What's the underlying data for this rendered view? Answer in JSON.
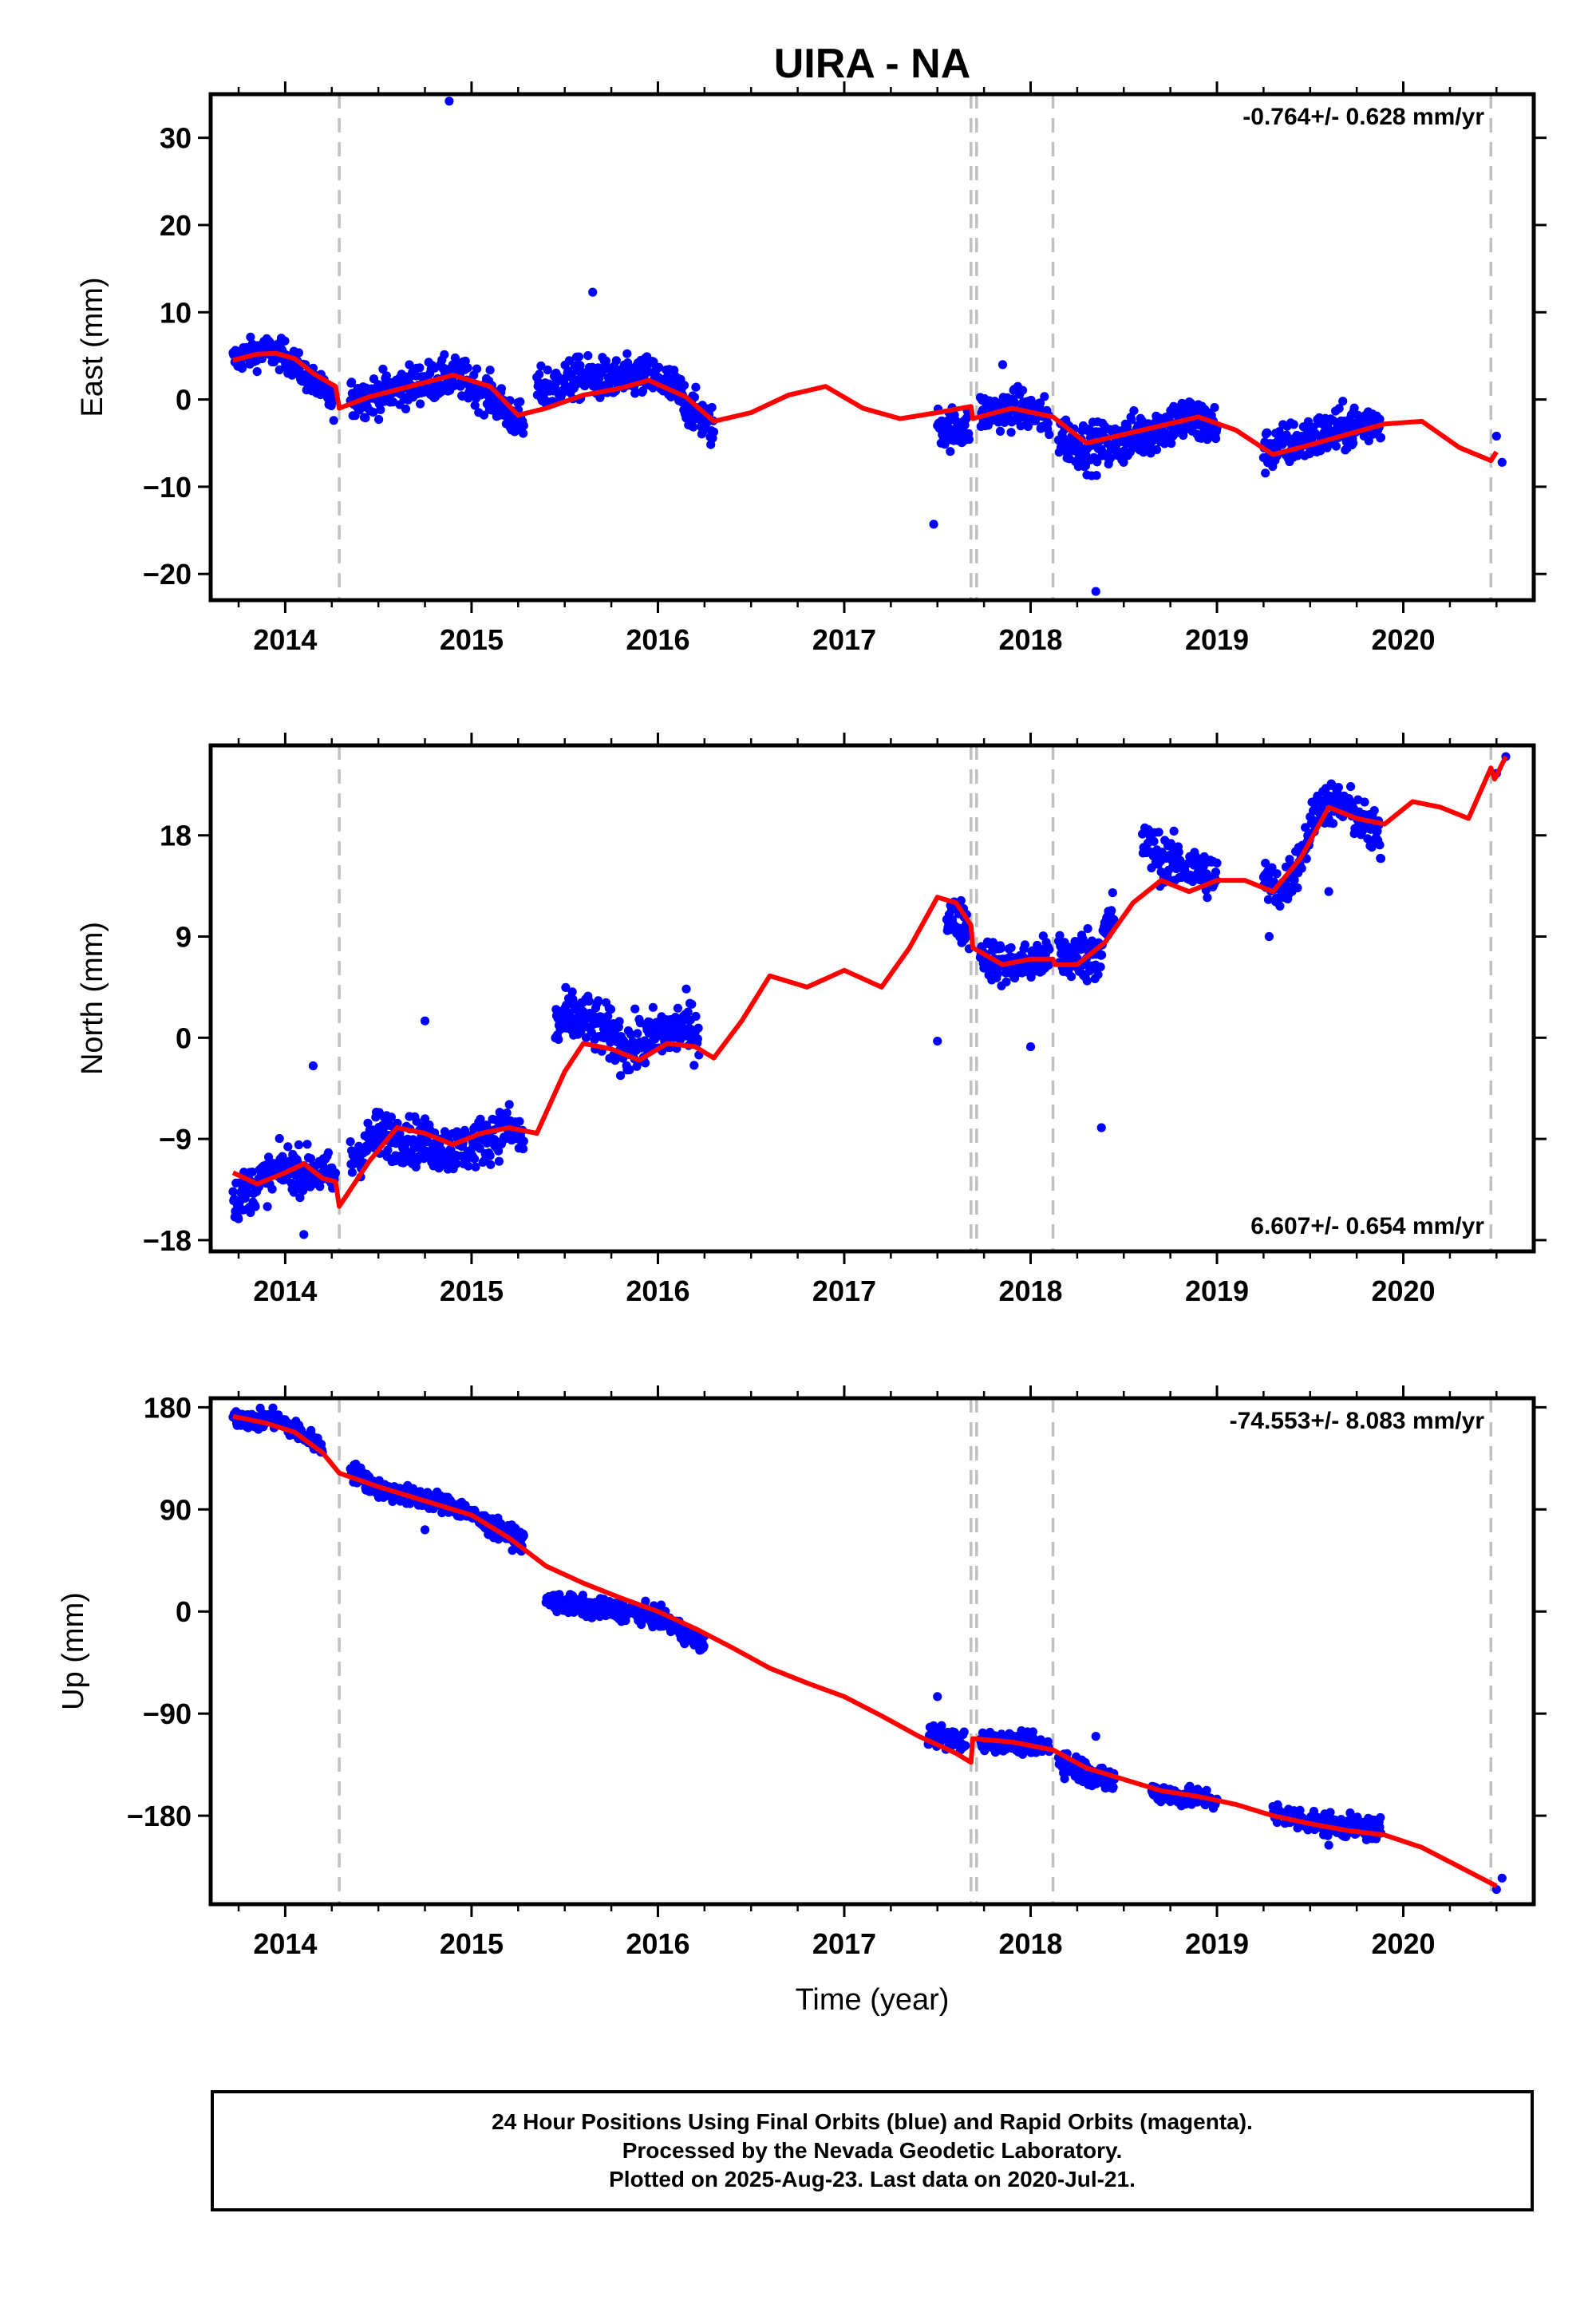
{
  "figure": {
    "title": "UIRA - NA",
    "xlabel": "Time (year)"
  },
  "colors": {
    "data": "#0000ff",
    "model": "#ff0000",
    "event": "#c0c0c0",
    "axes": "#000000"
  },
  "caption": {
    "line1": "24 Hour Positions Using Final Orbits (blue) and Rapid Orbits (magenta).",
    "line2": "Processed by the Nevada Geodetic Laboratory.",
    "line3": "Plotted on 2025-Aug-23. Last data on 2020-Jul-21."
  },
  "chart_data": [
    {
      "type": "scatter",
      "ylabel": "East (mm)",
      "rate_label": "-0.764+/- 0.628 mm/yr",
      "rate_position": "top-right",
      "xlim": [
        2013.6,
        2020.7
      ],
      "ylim": [
        -23,
        35
      ],
      "xticks": [
        2014,
        2015,
        2016,
        2017,
        2018,
        2019,
        2020
      ],
      "xtick_labels": [
        "2014",
        "2015",
        "2016",
        "2017",
        "2018",
        "2019",
        "2020"
      ],
      "yticks": [
        -20,
        -10,
        0,
        10,
        20,
        30
      ],
      "ytick_labels": [
        "−20",
        "−10",
        "0",
        "10",
        "20",
        "30"
      ],
      "event_lines": [
        2014.29,
        2017.68,
        2017.71,
        2018.12,
        2020.47
      ],
      "data_segments": [
        {
          "x": [
            2013.72,
            2013.8,
            2013.9,
            2014.0,
            2014.1,
            2014.2,
            2014.27
          ],
          "y": [
            4.5,
            5.2,
            5.6,
            5.0,
            3.0,
            1.0,
            -0.5
          ],
          "spread": 1.2
        },
        {
          "x": [
            2014.35,
            2014.5,
            2014.7,
            2014.9,
            2015.0,
            2015.1,
            2015.2,
            2015.28
          ],
          "y": [
            0.0,
            0.6,
            1.8,
            2.6,
            1.8,
            0.5,
            -1.5,
            -3.0
          ],
          "spread": 1.6
        },
        {
          "x": [
            2015.35,
            2015.5,
            2015.6,
            2015.8,
            2015.9,
            2016.0,
            2016.1,
            2016.2,
            2016.3
          ],
          "y": [
            1.0,
            2.0,
            2.5,
            2.2,
            2.6,
            2.5,
            1.0,
            -1.5,
            -3.2
          ],
          "spread": 1.7
        },
        {
          "x": [
            2017.5,
            2017.6,
            2017.67
          ],
          "y": [
            -3.0,
            -3.3,
            -3.0
          ],
          "spread": 1.7
        },
        {
          "x": [
            2017.73,
            2017.85,
            2017.95,
            2018.05,
            2018.1
          ],
          "y": [
            -1.5,
            -1.3,
            -1.0,
            -1.8,
            -2.5
          ],
          "spread": 1.6
        },
        {
          "x": [
            2018.15,
            2018.3,
            2018.45,
            2018.6,
            2018.75,
            2018.85,
            2019.0
          ],
          "y": [
            -4.0,
            -5.5,
            -5.2,
            -3.8,
            -2.8,
            -2.2,
            -3.2
          ],
          "spread": 1.9
        },
        {
          "x": [
            2019.25,
            2019.4,
            2019.55,
            2019.7,
            2019.85,
            2019.88
          ],
          "y": [
            -6.0,
            -5.0,
            -4.2,
            -3.3,
            -2.4,
            -2.2
          ],
          "spread": 1.8
        },
        {
          "x": [
            2020.5,
            2020.53
          ],
          "y": [
            -4.2,
            -7.2
          ],
          "spread": 0
        }
      ],
      "outliers": [
        {
          "x": 2014.88,
          "y": 34.2
        },
        {
          "x": 2015.65,
          "y": 12.3
        },
        {
          "x": 2017.48,
          "y": -14.3
        },
        {
          "x": 2018.35,
          "y": -22.0
        },
        {
          "x": 2017.85,
          "y": 4.0
        }
      ],
      "model_line": {
        "x": [
          2013.72,
          2013.85,
          2013.95,
          2014.05,
          2014.15,
          2014.27,
          2014.29,
          2014.45,
          2014.65,
          2014.9,
          2015.1,
          2015.25,
          2015.4,
          2015.6,
          2015.8,
          2015.95,
          2016.15,
          2016.3,
          2016.5,
          2016.7,
          2016.9,
          2017.1,
          2017.3,
          2017.5,
          2017.68,
          2017.69,
          2017.9,
          2018.12,
          2018.3,
          2018.5,
          2018.7,
          2018.9,
          2019.1,
          2019.3,
          2019.5,
          2019.7,
          2019.9,
          2020.1,
          2020.3,
          2020.47,
          2020.5
        ],
        "y": [
          4.5,
          5.2,
          5.3,
          4.7,
          3.0,
          1.5,
          -1.0,
          0.3,
          1.4,
          2.8,
          1.5,
          -1.8,
          -1.0,
          0.5,
          1.3,
          2.2,
          0.3,
          -2.5,
          -1.5,
          0.5,
          1.5,
          -1.0,
          -2.2,
          -1.5,
          -0.8,
          -2.2,
          -1.0,
          -2.0,
          -5.0,
          -4.0,
          -3.0,
          -2.0,
          -3.5,
          -6.3,
          -5.2,
          -4.0,
          -2.8,
          -2.5,
          -5.5,
          -7.0,
          -6.0
        ]
      }
    },
    {
      "type": "scatter",
      "ylabel": "North (mm)",
      "rate_label": "6.607+/- 0.654 mm/yr",
      "rate_position": "bottom-right",
      "xlim": [
        2013.6,
        2020.7
      ],
      "ylim": [
        -19,
        26
      ],
      "xticks": [
        2014,
        2015,
        2016,
        2017,
        2018,
        2019,
        2020
      ],
      "xtick_labels": [
        "2014",
        "2015",
        "2016",
        "2017",
        "2018",
        "2019",
        "2020"
      ],
      "yticks": [
        -18,
        -9,
        0,
        9,
        18
      ],
      "ytick_labels": [
        "−18",
        "−9",
        "0",
        "9",
        "18"
      ],
      "event_lines": [
        2014.29,
        2017.68,
        2017.71,
        2018.12,
        2020.47
      ],
      "data_segments": [
        {
          "x": [
            2013.72,
            2013.85,
            2014.0,
            2014.1,
            2014.2,
            2014.27
          ],
          "y": [
            -14.5,
            -13.0,
            -11.5,
            -11.8,
            -12.0,
            -12.5
          ],
          "spread": 1.4
        },
        {
          "x": [
            2014.35,
            2014.5,
            2014.7,
            2014.9,
            2015.0,
            2015.1,
            2015.2,
            2015.28
          ],
          "y": [
            -11.0,
            -8.5,
            -9.2,
            -10.0,
            -9.6,
            -8.8,
            -8.0,
            -9.2
          ],
          "spread": 1.5
        },
        {
          "x": [
            2015.45,
            2015.55,
            2015.7,
            2015.85,
            2016.0,
            2016.15,
            2016.22
          ],
          "y": [
            1.0,
            2.0,
            0.8,
            -1.0,
            0.3,
            1.0,
            0.6
          ],
          "spread": 1.7
        },
        {
          "x": [
            2017.55,
            2017.6,
            2017.67
          ],
          "y": [
            10.5,
            10.5,
            9.8
          ],
          "spread": 1.4
        },
        {
          "x": [
            2017.73,
            2017.85,
            2017.95,
            2018.05,
            2018.1
          ],
          "y": [
            7.5,
            6.5,
            6.5,
            7.0,
            7.2
          ],
          "spread": 1.3
        },
        {
          "x": [
            2018.15,
            2018.25,
            2018.35,
            2018.45
          ],
          "y": [
            7.5,
            7.2,
            7.5,
            11.0
          ],
          "spread": 1.7
        },
        {
          "x": [
            2018.6,
            2018.7,
            2018.85,
            2019.0
          ],
          "y": [
            17.5,
            16.0,
            15.0,
            14.5
          ],
          "spread": 1.5
        },
        {
          "x": [
            2019.25,
            2019.35,
            2019.45,
            2019.55,
            2019.7,
            2019.85,
            2019.88
          ],
          "y": [
            14.0,
            13.0,
            16.0,
            21.0,
            20.5,
            18.0,
            17.5
          ],
          "spread": 1.4
        },
        {
          "x": [
            2020.5,
            2020.55
          ],
          "y": [
            23.5,
            25.0
          ],
          "spread": 0
        }
      ],
      "outliers": [
        {
          "x": 2014.15,
          "y": -2.5
        },
        {
          "x": 2014.1,
          "y": -17.5
        },
        {
          "x": 2014.75,
          "y": 1.5
        },
        {
          "x": 2017.5,
          "y": -0.3
        },
        {
          "x": 2018.0,
          "y": -0.8
        },
        {
          "x": 2018.38,
          "y": -8.0
        },
        {
          "x": 2019.28,
          "y": 9.0
        },
        {
          "x": 2019.6,
          "y": 13.0
        }
      ],
      "model_line": {
        "x": [
          2013.72,
          2013.85,
          2014.0,
          2014.1,
          2014.2,
          2014.27,
          2014.29,
          2014.45,
          2014.6,
          2014.75,
          2014.9,
          2015.05,
          2015.2,
          2015.35,
          2015.5,
          2015.6,
          2015.75,
          2015.9,
          2016.05,
          2016.2,
          2016.3,
          2016.45,
          2016.6,
          2016.8,
          2017.0,
          2017.2,
          2017.35,
          2017.5,
          2017.6,
          2017.68,
          2017.69,
          2017.85,
          2018.0,
          2018.12,
          2018.13,
          2018.25,
          2018.4,
          2018.55,
          2018.7,
          2018.85,
          2019.0,
          2019.15,
          2019.3,
          2019.45,
          2019.6,
          2019.75,
          2019.9,
          2020.05,
          2020.2,
          2020.35,
          2020.47,
          2020.49,
          2020.55
        ],
        "y": [
          -12.0,
          -13.0,
          -12.0,
          -11.2,
          -12.5,
          -12.8,
          -15.0,
          -11.0,
          -8.0,
          -8.5,
          -9.5,
          -8.5,
          -8.0,
          -8.5,
          -3.0,
          -0.5,
          -1.0,
          -2.0,
          -0.5,
          -0.8,
          -1.8,
          1.5,
          5.5,
          4.5,
          6.0,
          4.5,
          8.0,
          12.5,
          12.0,
          10.0,
          8.0,
          6.5,
          7.0,
          7.0,
          6.5,
          6.5,
          8.5,
          12.0,
          14.0,
          13.0,
          14.0,
          14.0,
          13.0,
          16.0,
          20.5,
          19.5,
          19.0,
          21.0,
          20.5,
          19.5,
          24.0,
          23.0,
          25.0
        ]
      }
    },
    {
      "type": "scatter",
      "ylabel": "Up (mm)",
      "rate_label": "-74.553+/- 8.083 mm/yr",
      "rate_position": "top-right",
      "xlim": [
        2013.6,
        2020.7
      ],
      "ylim": [
        -258,
        188
      ],
      "xticks": [
        2014,
        2015,
        2016,
        2017,
        2018,
        2019,
        2020
      ],
      "xtick_labels": [
        "2014",
        "2015",
        "2016",
        "2017",
        "2018",
        "2019",
        "2020"
      ],
      "yticks": [
        -180,
        -90,
        0,
        90,
        180
      ],
      "ytick_labels": [
        "−180",
        "−90",
        "0",
        "90",
        "180"
      ],
      "event_lines": [
        2014.29,
        2017.68,
        2017.71,
        2018.12,
        2020.47
      ],
      "data_segments": [
        {
          "x": [
            2013.72,
            2013.85,
            2013.95,
            2014.05,
            2014.15,
            2014.2
          ],
          "y": [
            172,
            168,
            170,
            160,
            150,
            144
          ],
          "spread": 6
        },
        {
          "x": [
            2014.35,
            2014.5,
            2014.65,
            2014.8,
            2014.95,
            2015.1,
            2015.28
          ],
          "y": [
            125,
            108,
            102,
            98,
            90,
            75,
            62
          ],
          "spread": 6
        },
        {
          "x": [
            2015.4,
            2015.55,
            2015.7,
            2015.85,
            2016.0,
            2016.1,
            2016.2,
            2016.25
          ],
          "y": [
            10,
            5,
            2,
            0,
            -5,
            -15,
            -25,
            -30
          ],
          "spread": 6
        },
        {
          "x": [
            2017.45,
            2017.55,
            2017.65
          ],
          "y": [
            -108,
            -112,
            -115
          ],
          "spread": 7
        },
        {
          "x": [
            2017.73,
            2017.85,
            2018.0,
            2018.1
          ],
          "y": [
            -113,
            -115,
            -117,
            -118
          ],
          "spread": 6
        },
        {
          "x": [
            2018.15,
            2018.25,
            2018.35,
            2018.45
          ],
          "y": [
            -130,
            -138,
            -145,
            -150
          ],
          "spread": 8
        },
        {
          "x": [
            2018.65,
            2018.8,
            2018.95,
            2019.0
          ],
          "y": [
            -158,
            -163,
            -165,
            -168
          ],
          "spread": 6
        },
        {
          "x": [
            2019.3,
            2019.45,
            2019.6,
            2019.75,
            2019.88
          ],
          "y": [
            -178,
            -183,
            -188,
            -190,
            -193
          ],
          "spread": 7
        },
        {
          "x": [
            2020.5,
            2020.53
          ],
          "y": [
            -245,
            -235
          ],
          "spread": 0
        }
      ],
      "outliers": [
        {
          "x": 2017.5,
          "y": -75
        },
        {
          "x": 2018.35,
          "y": -110
        },
        {
          "x": 2019.6,
          "y": -206
        },
        {
          "x": 2014.75,
          "y": 72
        }
      ],
      "model_line": {
        "x": [
          2013.72,
          2013.9,
          2014.05,
          2014.2,
          2014.29,
          2014.5,
          2014.7,
          2015.0,
          2015.2,
          2015.4,
          2015.6,
          2015.8,
          2016.0,
          2016.2,
          2016.4,
          2016.6,
          2016.8,
          2017.0,
          2017.2,
          2017.4,
          2017.6,
          2017.68,
          2017.69,
          2017.9,
          2018.12,
          2018.3,
          2018.5,
          2018.7,
          2018.9,
          2019.1,
          2019.3,
          2019.5,
          2019.7,
          2019.9,
          2020.1,
          2020.3,
          2020.5
        ],
        "y": [
          172,
          166,
          158,
          140,
          122,
          110,
          100,
          85,
          65,
          40,
          25,
          12,
          0,
          -15,
          -32,
          -50,
          -63,
          -75,
          -92,
          -110,
          -125,
          -133,
          -112,
          -115,
          -122,
          -138,
          -148,
          -158,
          -163,
          -170,
          -180,
          -187,
          -193,
          -197,
          -208,
          -225,
          -242
        ]
      }
    }
  ]
}
